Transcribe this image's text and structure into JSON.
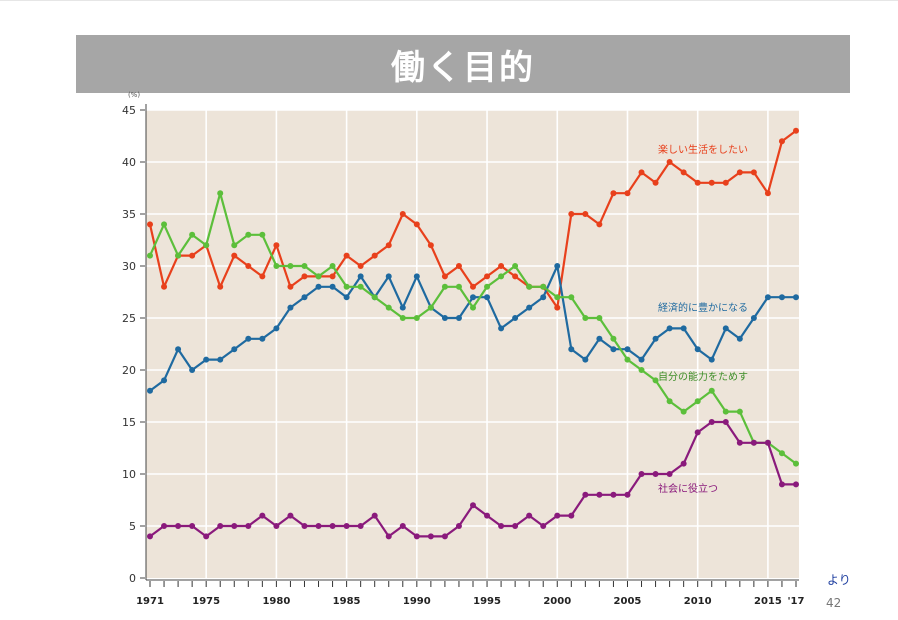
{
  "slide": {
    "title": "働く目的",
    "source_note": "より",
    "page_number": "42"
  },
  "chart_data": {
    "type": "line",
    "ylabel": "(%)",
    "ylim": [
      0,
      45
    ],
    "yticks": [
      0,
      5,
      10,
      15,
      20,
      25,
      30,
      35,
      40,
      45
    ],
    "xlim": [
      1971,
      2017
    ],
    "xtick_labels": [
      {
        "year": 1971,
        "label": "1971"
      },
      {
        "year": 1975,
        "label": "1975"
      },
      {
        "year": 1980,
        "label": "1980"
      },
      {
        "year": 1985,
        "label": "1985"
      },
      {
        "year": 1990,
        "label": "1990"
      },
      {
        "year": 1995,
        "label": "1995"
      },
      {
        "year": 2000,
        "label": "2000"
      },
      {
        "year": 2005,
        "label": "2005"
      },
      {
        "year": 2010,
        "label": "2010"
      },
      {
        "year": 2015,
        "label": "2015"
      },
      {
        "year": 2017,
        "label": "'17"
      }
    ],
    "grid": true,
    "background": "#ede4d9",
    "x": [
      1971,
      1972,
      1973,
      1974,
      1975,
      1976,
      1977,
      1978,
      1979,
      1980,
      1981,
      1982,
      1983,
      1984,
      1985,
      1986,
      1987,
      1988,
      1989,
      1990,
      1991,
      1992,
      1993,
      1994,
      1995,
      1996,
      1997,
      1998,
      1999,
      2000,
      2001,
      2002,
      2003,
      2004,
      2005,
      2006,
      2007,
      2008,
      2009,
      2010,
      2011,
      2012,
      2013,
      2014,
      2015,
      2016,
      2017
    ],
    "series": [
      {
        "name": "楽しい生活をしたい",
        "color": "#e8401c",
        "values": [
          34,
          28,
          31,
          31,
          32,
          28,
          31,
          30,
          29,
          32,
          28,
          29,
          29,
          29,
          31,
          30,
          31,
          32,
          35,
          34,
          32,
          29,
          30,
          28,
          29,
          30,
          29,
          28,
          28,
          26,
          35,
          35,
          34,
          37,
          37,
          39,
          38,
          40,
          39,
          38,
          38,
          38,
          39,
          39,
          37,
          42,
          43
        ]
      },
      {
        "name": "経済的に豊かになる",
        "color": "#1f6aa0",
        "values": [
          18,
          19,
          22,
          20,
          21,
          21,
          22,
          23,
          23,
          24,
          26,
          27,
          28,
          28,
          27,
          29,
          27,
          29,
          26,
          29,
          26,
          25,
          25,
          27,
          27,
          24,
          25,
          26,
          27,
          30,
          22,
          21,
          23,
          22,
          22,
          21,
          23,
          24,
          24,
          22,
          21,
          24,
          23,
          25,
          27,
          27,
          27
        ]
      },
      {
        "name": "自分の能力をためす",
        "color": "#5cbf3b",
        "values": [
          31,
          34,
          31,
          33,
          32,
          37,
          32,
          33,
          33,
          30,
          30,
          30,
          29,
          30,
          28,
          28,
          27,
          26,
          25,
          25,
          26,
          28,
          28,
          26,
          28,
          29,
          30,
          28,
          28,
          27,
          27,
          25,
          25,
          23,
          21,
          20,
          19,
          17,
          16,
          17,
          18,
          16,
          16,
          13,
          13,
          12,
          11
        ]
      },
      {
        "name": "社会に役立つ",
        "color": "#8a1a7c",
        "values": [
          4,
          5,
          5,
          5,
          4,
          5,
          5,
          5,
          6,
          5,
          6,
          5,
          5,
          5,
          5,
          5,
          6,
          4,
          5,
          4,
          4,
          4,
          5,
          7,
          6,
          5,
          5,
          6,
          5,
          6,
          6,
          8,
          8,
          8,
          8,
          10,
          10,
          10,
          11,
          14,
          15,
          15,
          13,
          13,
          13,
          9,
          9
        ]
      }
    ],
    "labels": [
      {
        "series": "楽しい生活をしたい",
        "text": "楽しい生活をしたい",
        "color": "#e8401c"
      },
      {
        "series": "経済的に豊かになる",
        "text": "経済的に豊かになる",
        "color": "#1f6aa0"
      },
      {
        "series": "自分の能力をためす",
        "text": "自分の能力をためす",
        "color": "#3f8f2a"
      },
      {
        "series": "社会に役立つ",
        "text": "社会に役立つ",
        "color": "#8a1a7c"
      }
    ]
  }
}
